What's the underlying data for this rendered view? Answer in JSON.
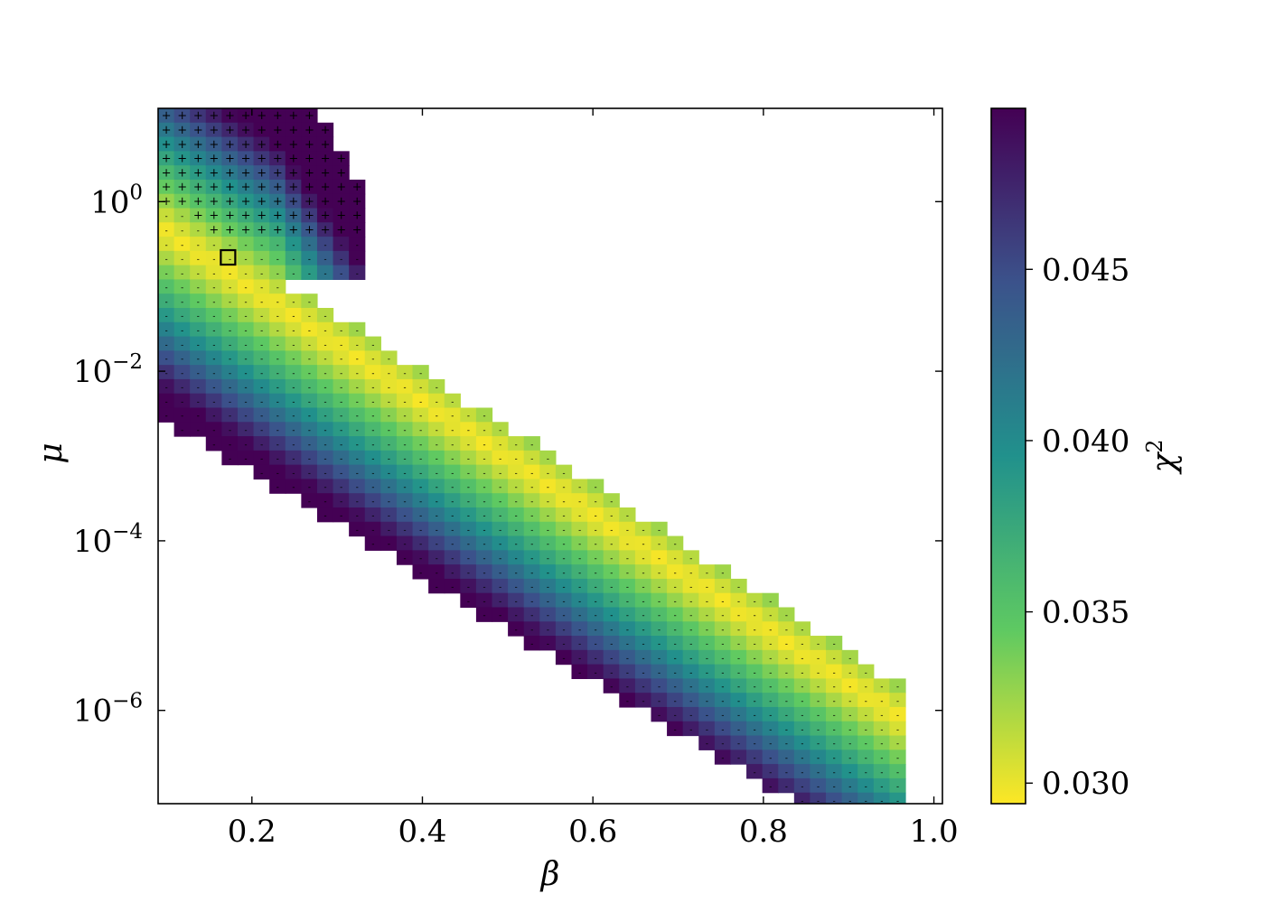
{
  "chart_data": {
    "type": "heatmap",
    "xlabel": "β",
    "ylabel": "μ",
    "colorbar_label": "χ",
    "colorbar_label_sup": "2",
    "colormap": "viridis (reversed: yellow = low, purple = high)",
    "colormap_stops": [
      "#fde725",
      "#5ec962",
      "#21918c",
      "#3b528b",
      "#440154"
    ],
    "xlim": [
      0.09,
      1.01
    ],
    "ylim_log10": [
      -7.1,
      1.1
    ],
    "y_scale": "log",
    "xticks": [
      {
        "value": 0.2,
        "label": "0.2"
      },
      {
        "value": 0.4,
        "label": "0.4"
      },
      {
        "value": 0.6,
        "label": "0.6"
      },
      {
        "value": 0.8,
        "label": "0.8"
      },
      {
        "value": 1.0,
        "label": "1.0"
      }
    ],
    "yticks": [
      {
        "log10": 0,
        "base": "10",
        "exp": "0"
      },
      {
        "log10": -2,
        "base": "10",
        "exp": "−2"
      },
      {
        "log10": -4,
        "base": "10",
        "exp": "−4"
      },
      {
        "log10": -6,
        "base": "10",
        "exp": "−6"
      }
    ],
    "clim": [
      0.0294,
      0.0497
    ],
    "cbar_ticks": [
      {
        "value": 0.03,
        "label": "0.030"
      },
      {
        "value": 0.035,
        "label": "0.035"
      },
      {
        "value": 0.04,
        "label": "0.040"
      },
      {
        "value": 0.045,
        "label": "0.045"
      }
    ],
    "grid": {
      "beta_start": 0.09,
      "beta_step": 0.01865,
      "beta_count": 47,
      "log10_mu_top": 1.1,
      "log10_mu_step": 0.1681,
      "log10_mu_count": 49
    },
    "band": {
      "upper_edge_log10_mu": [
        [
          0.3,
          -1.35
        ],
        [
          1.0,
          -5.95
        ]
      ],
      "lower_edge_log10_mu": [
        [
          0.09,
          -2.55
        ],
        [
          0.83,
          -7.05
        ]
      ],
      "valley_log10_mu_at_beta": [
        [
          0.15,
          -0.7
        ],
        [
          1.0,
          -6.35
        ]
      ],
      "chi2_min": 0.0296,
      "chi2_max": 0.0497,
      "sign_marker": "-"
    },
    "upper_region": {
      "beta_range": [
        0.09,
        0.33
      ],
      "log10_mu_range": [
        -1.0,
        1.1
      ],
      "sign_marker": "+"
    },
    "best_fit": {
      "beta": 0.172,
      "mu": 0.22,
      "marker": "open-square"
    }
  }
}
